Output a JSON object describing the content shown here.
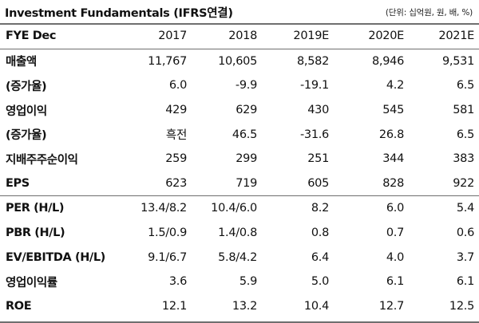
{
  "title": "Investment Fundamentals (IFRS연결)",
  "unit": "(단위: 십억원, 원, 배, %)",
  "columns": {
    "label": "FYE Dec",
    "years": [
      "2017",
      "2018",
      "2019E",
      "2020E",
      "2021E"
    ]
  },
  "rows": [
    {
      "label": "매출액",
      "values": [
        "11,767",
        "10,605",
        "8,582",
        "8,946",
        "9,531"
      ]
    },
    {
      "label": "(증가율)",
      "values": [
        "6.0",
        "-9.9",
        "-19.1",
        "4.2",
        "6.5"
      ]
    },
    {
      "label": "영업이익",
      "values": [
        "429",
        "629",
        "430",
        "545",
        "581"
      ]
    },
    {
      "label": "(증가율)",
      "values": [
        "흑전",
        "46.5",
        "-31.6",
        "26.8",
        "6.5"
      ]
    },
    {
      "label": "지배주주순이익",
      "values": [
        "259",
        "299",
        "251",
        "344",
        "383"
      ]
    },
    {
      "label": "EPS",
      "values": [
        "623",
        "719",
        "605",
        "828",
        "922"
      ]
    },
    {
      "label": "PER (H/L)",
      "values": [
        "13.4/8.2",
        "10.4/6.0",
        "8.2",
        "6.0",
        "5.4"
      ]
    },
    {
      "label": "PBR (H/L)",
      "values": [
        "1.5/0.9",
        "1.4/0.8",
        "0.8",
        "0.7",
        "0.6"
      ]
    },
    {
      "label": "EV/EBITDA (H/L)",
      "values": [
        "9.1/6.7",
        "5.8/4.2",
        "6.4",
        "4.0",
        "3.7"
      ]
    },
    {
      "label": "영업이익률",
      "values": [
        "3.6",
        "5.9",
        "5.0",
        "6.1",
        "6.1"
      ]
    },
    {
      "label": "ROE",
      "values": [
        "12.1",
        "13.2",
        "10.4",
        "12.7",
        "12.5"
      ]
    }
  ]
}
